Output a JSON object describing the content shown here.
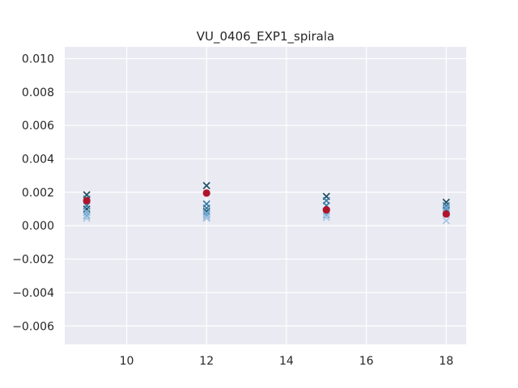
{
  "chart_data": {
    "type": "scatter",
    "title": "VU_0406_EXP1_spirala",
    "xlabel": "",
    "ylabel": "",
    "xlim": [
      8.45,
      18.5
    ],
    "ylim": [
      -0.0071,
      0.0107
    ],
    "xticks": [
      10,
      12,
      14,
      16,
      18
    ],
    "xtick_labels": [
      "10",
      "12",
      "14",
      "16",
      "18"
    ],
    "yticks": [
      -0.006,
      -0.004,
      -0.002,
      0.0,
      0.002,
      0.004,
      0.006,
      0.008,
      0.01
    ],
    "ytick_labels": [
      "−0.006",
      "−0.004",
      "−0.002",
      "0.000",
      "0.002",
      "0.004",
      "0.006",
      "0.008",
      "0.010"
    ],
    "grid": true,
    "background": "#eaeaf2",
    "series": [
      {
        "marker": "x",
        "color": "#1f4e63",
        "points": [
          {
            "x": 9,
            "y": 0.00185
          },
          {
            "x": 12,
            "y": 0.0024
          },
          {
            "x": 15,
            "y": 0.00175
          },
          {
            "x": 18,
            "y": 0.0014
          },
          {
            "x": 9,
            "y": 0.001
          },
          {
            "x": 12,
            "y": 0.00085
          }
        ]
      },
      {
        "marker": "x",
        "color": "#3a7ca5",
        "points": [
          {
            "x": 9,
            "y": 0.0016
          },
          {
            "x": 9,
            "y": 0.0012
          },
          {
            "x": 12,
            "y": 0.0013
          },
          {
            "x": 12,
            "y": 0.00105
          },
          {
            "x": 15,
            "y": 0.0015
          },
          {
            "x": 15,
            "y": 0.0012
          },
          {
            "x": 18,
            "y": 0.0012
          },
          {
            "x": 18,
            "y": 0.00095
          }
        ]
      },
      {
        "marker": "x",
        "color": "#6fa8d0",
        "points": [
          {
            "x": 9,
            "y": 0.0008
          },
          {
            "x": 9,
            "y": 0.0006
          },
          {
            "x": 12,
            "y": 0.00075
          },
          {
            "x": 12,
            "y": 0.00065
          },
          {
            "x": 12,
            "y": 0.0005
          },
          {
            "x": 15,
            "y": 0.00085
          },
          {
            "x": 15,
            "y": 0.00065
          },
          {
            "x": 18,
            "y": 0.00105
          },
          {
            "x": 18,
            "y": 0.00075
          }
        ]
      },
      {
        "marker": "x",
        "color": "#a9c6e3",
        "points": [
          {
            "x": 9,
            "y": 0.00045
          },
          {
            "x": 12,
            "y": 0.00045
          },
          {
            "x": 15,
            "y": 0.0005
          },
          {
            "x": 18,
            "y": 0.0003
          }
        ]
      },
      {
        "marker": "o",
        "color": "#b0142a",
        "points": [
          {
            "x": 9,
            "y": 0.0015
          },
          {
            "x": 12,
            "y": 0.00195
          },
          {
            "x": 15,
            "y": 0.00095
          },
          {
            "x": 18,
            "y": 0.0007
          }
        ]
      }
    ]
  }
}
